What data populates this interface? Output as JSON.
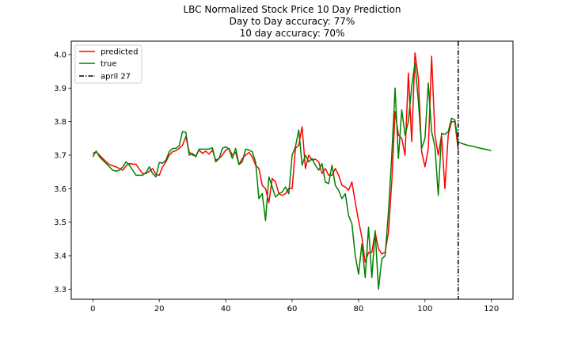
{
  "chart_data": {
    "type": "line",
    "title": "LBC Normalized Stock Price 10 Day Prediction",
    "subtitle_lines": [
      "Day to Day accuracy: 77%",
      "10 day accuracy: 70%"
    ],
    "xlabel": "",
    "ylabel": "",
    "xlim": [
      -6.5,
      126.5
    ],
    "ylim": [
      3.27,
      4.04
    ],
    "x_ticks": [
      0,
      20,
      40,
      60,
      80,
      100,
      120
    ],
    "y_ticks": [
      3.3,
      3.4,
      3.5,
      3.6,
      3.7,
      3.8,
      3.9,
      4.0
    ],
    "legend_placement": "top-left",
    "grid": false,
    "vline": {
      "x": 110,
      "label": "april 27",
      "color": "#000000"
    },
    "series": [
      {
        "name": "predicted",
        "color": "#ff0000",
        "points": [
          [
            0,
            3.705
          ],
          [
            1,
            3.71
          ],
          [
            2,
            3.7
          ],
          [
            3,
            3.69
          ],
          [
            4,
            3.68
          ],
          [
            5,
            3.672
          ],
          [
            6,
            3.668
          ],
          [
            7,
            3.665
          ],
          [
            8,
            3.66
          ],
          [
            9,
            3.655
          ],
          [
            10,
            3.668
          ],
          [
            11,
            3.675
          ],
          [
            12,
            3.673
          ],
          [
            13,
            3.673
          ],
          [
            14,
            3.658
          ],
          [
            15,
            3.645
          ],
          [
            16,
            3.645
          ],
          [
            17,
            3.652
          ],
          [
            18,
            3.66
          ],
          [
            19,
            3.642
          ],
          [
            20,
            3.64
          ],
          [
            21,
            3.665
          ],
          [
            22,
            3.68
          ],
          [
            23,
            3.7
          ],
          [
            24,
            3.71
          ],
          [
            25,
            3.713
          ],
          [
            26,
            3.72
          ],
          [
            27,
            3.73
          ],
          [
            28,
            3.755
          ],
          [
            29,
            3.71
          ],
          [
            30,
            3.7
          ],
          [
            31,
            3.698
          ],
          [
            32,
            3.715
          ],
          [
            33,
            3.705
          ],
          [
            34,
            3.712
          ],
          [
            35,
            3.703
          ],
          [
            36,
            3.715
          ],
          [
            37,
            3.685
          ],
          [
            38,
            3.69
          ],
          [
            39,
            3.7
          ],
          [
            40,
            3.715
          ],
          [
            41,
            3.72
          ],
          [
            42,
            3.7
          ],
          [
            43,
            3.708
          ],
          [
            44,
            3.672
          ],
          [
            45,
            3.69
          ],
          [
            46,
            3.7
          ],
          [
            47,
            3.708
          ],
          [
            48,
            3.695
          ],
          [
            49,
            3.67
          ],
          [
            50,
            3.66
          ],
          [
            51,
            3.61
          ],
          [
            52,
            3.6
          ],
          [
            53,
            3.558
          ],
          [
            54,
            3.63
          ],
          [
            55,
            3.62
          ],
          [
            56,
            3.585
          ],
          [
            57,
            3.58
          ],
          [
            58,
            3.585
          ],
          [
            59,
            3.6
          ],
          [
            60,
            3.6
          ],
          [
            61,
            3.72
          ],
          [
            62,
            3.73
          ],
          [
            63,
            3.785
          ],
          [
            64,
            3.66
          ],
          [
            65,
            3.7
          ],
          [
            66,
            3.685
          ],
          [
            67,
            3.688
          ],
          [
            68,
            3.68
          ],
          [
            69,
            3.645
          ],
          [
            70,
            3.66
          ],
          [
            71,
            3.64
          ],
          [
            72,
            3.64
          ],
          [
            73,
            3.66
          ],
          [
            74,
            3.64
          ],
          [
            75,
            3.61
          ],
          [
            76,
            3.605
          ],
          [
            77,
            3.595
          ],
          [
            78,
            3.62
          ],
          [
            79,
            3.56
          ],
          [
            80,
            3.505
          ],
          [
            81,
            3.455
          ],
          [
            82,
            3.38
          ],
          [
            83,
            3.41
          ],
          [
            84,
            3.41
          ],
          [
            85,
            3.47
          ],
          [
            86,
            3.42
          ],
          [
            87,
            3.405
          ],
          [
            88,
            3.41
          ],
          [
            89,
            3.47
          ],
          [
            90,
            3.62
          ],
          [
            91,
            3.83
          ],
          [
            92,
            3.76
          ],
          [
            93,
            3.75
          ],
          [
            94,
            3.7
          ],
          [
            95,
            3.945
          ],
          [
            96,
            3.74
          ],
          [
            97,
            4.005
          ],
          [
            98,
            3.93
          ],
          [
            99,
            3.71
          ],
          [
            100,
            3.665
          ],
          [
            101,
            3.72
          ],
          [
            102,
            3.995
          ],
          [
            103,
            3.76
          ],
          [
            104,
            3.7
          ],
          [
            105,
            3.76
          ],
          [
            106,
            3.6
          ],
          [
            107,
            3.76
          ],
          [
            108,
            3.8
          ],
          [
            109,
            3.8
          ],
          [
            110,
            3.715
          ]
        ]
      },
      {
        "name": "true",
        "color": "#008000",
        "points": [
          [
            0,
            3.695
          ],
          [
            1,
            3.712
          ],
          [
            2,
            3.695
          ],
          [
            3,
            3.685
          ],
          [
            4,
            3.675
          ],
          [
            5,
            3.665
          ],
          [
            6,
            3.655
          ],
          [
            7,
            3.652
          ],
          [
            8,
            3.655
          ],
          [
            9,
            3.665
          ],
          [
            10,
            3.68
          ],
          [
            11,
            3.67
          ],
          [
            12,
            3.655
          ],
          [
            13,
            3.64
          ],
          [
            14,
            3.64
          ],
          [
            15,
            3.64
          ],
          [
            16,
            3.648
          ],
          [
            17,
            3.665
          ],
          [
            18,
            3.645
          ],
          [
            19,
            3.635
          ],
          [
            20,
            3.678
          ],
          [
            21,
            3.676
          ],
          [
            22,
            3.685
          ],
          [
            23,
            3.71
          ],
          [
            24,
            3.72
          ],
          [
            25,
            3.72
          ],
          [
            26,
            3.728
          ],
          [
            27,
            3.77
          ],
          [
            28,
            3.768
          ],
          [
            29,
            3.7
          ],
          [
            30,
            3.705
          ],
          [
            31,
            3.695
          ],
          [
            32,
            3.718
          ],
          [
            33,
            3.718
          ],
          [
            34,
            3.718
          ],
          [
            35,
            3.718
          ],
          [
            36,
            3.722
          ],
          [
            37,
            3.68
          ],
          [
            38,
            3.69
          ],
          [
            39,
            3.72
          ],
          [
            40,
            3.725
          ],
          [
            41,
            3.718
          ],
          [
            42,
            3.69
          ],
          [
            43,
            3.72
          ],
          [
            44,
            3.672
          ],
          [
            45,
            3.68
          ],
          [
            46,
            3.718
          ],
          [
            47,
            3.715
          ],
          [
            48,
            3.71
          ],
          [
            49,
            3.68
          ],
          [
            50,
            3.57
          ],
          [
            51,
            3.585
          ],
          [
            52,
            3.505
          ],
          [
            53,
            3.635
          ],
          [
            54,
            3.605
          ],
          [
            55,
            3.575
          ],
          [
            56,
            3.585
          ],
          [
            57,
            3.59
          ],
          [
            58,
            3.605
          ],
          [
            59,
            3.585
          ],
          [
            60,
            3.7
          ],
          [
            61,
            3.725
          ],
          [
            62,
            3.775
          ],
          [
            63,
            3.67
          ],
          [
            64,
            3.7
          ],
          [
            65,
            3.68
          ],
          [
            66,
            3.69
          ],
          [
            67,
            3.67
          ],
          [
            68,
            3.655
          ],
          [
            69,
            3.675
          ],
          [
            70,
            3.62
          ],
          [
            71,
            3.615
          ],
          [
            72,
            3.67
          ],
          [
            73,
            3.61
          ],
          [
            74,
            3.595
          ],
          [
            75,
            3.57
          ],
          [
            76,
            3.585
          ],
          [
            77,
            3.52
          ],
          [
            78,
            3.495
          ],
          [
            79,
            3.4
          ],
          [
            80,
            3.345
          ],
          [
            81,
            3.435
          ],
          [
            82,
            3.335
          ],
          [
            83,
            3.485
          ],
          [
            84,
            3.335
          ],
          [
            85,
            3.475
          ],
          [
            86,
            3.3
          ],
          [
            87,
            3.39
          ],
          [
            88,
            3.4
          ],
          [
            89,
            3.53
          ],
          [
            90,
            3.7
          ],
          [
            91,
            3.9
          ],
          [
            92,
            3.69
          ],
          [
            93,
            3.835
          ],
          [
            94,
            3.76
          ],
          [
            95,
            3.8
          ],
          [
            96,
            3.905
          ],
          [
            97,
            3.975
          ],
          [
            98,
            3.86
          ],
          [
            99,
            3.72
          ],
          [
            100,
            3.75
          ],
          [
            101,
            3.915
          ],
          [
            102,
            3.77
          ],
          [
            103,
            3.725
          ],
          [
            104,
            3.58
          ],
          [
            105,
            3.765
          ],
          [
            106,
            3.762
          ],
          [
            107,
            3.77
          ],
          [
            108,
            3.81
          ],
          [
            109,
            3.805
          ],
          [
            110,
            3.74
          ],
          [
            111,
            3.735
          ],
          [
            112,
            3.732
          ],
          [
            113,
            3.729
          ],
          [
            114,
            3.727
          ],
          [
            115,
            3.725
          ],
          [
            116,
            3.722
          ],
          [
            117,
            3.72
          ],
          [
            118,
            3.718
          ],
          [
            119,
            3.716
          ],
          [
            120,
            3.713
          ]
        ]
      }
    ]
  }
}
